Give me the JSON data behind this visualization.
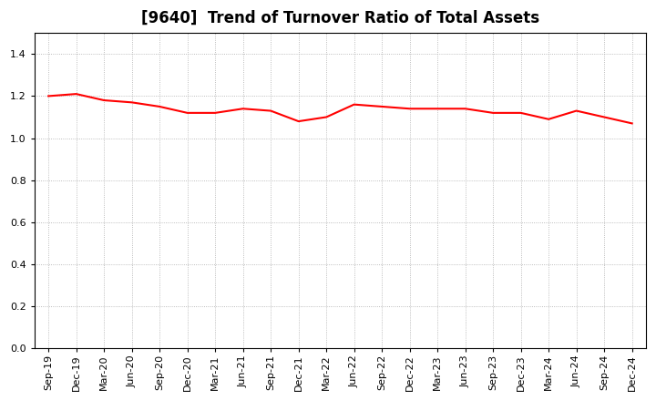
{
  "title": "[9640]  Trend of Turnover Ratio of Total Assets",
  "x_labels": [
    "Sep-19",
    "Dec-19",
    "Mar-20",
    "Jun-20",
    "Sep-20",
    "Dec-20",
    "Mar-21",
    "Jun-21",
    "Sep-21",
    "Dec-21",
    "Mar-22",
    "Jun-22",
    "Sep-22",
    "Dec-22",
    "Mar-23",
    "Jun-23",
    "Sep-23",
    "Dec-23",
    "Mar-24",
    "Jun-24",
    "Sep-24",
    "Dec-24"
  ],
  "values": [
    1.2,
    1.21,
    1.18,
    1.17,
    1.15,
    1.12,
    1.12,
    1.14,
    1.13,
    1.08,
    1.1,
    1.16,
    1.15,
    1.14,
    1.14,
    1.14,
    1.12,
    1.12,
    1.09,
    1.13,
    1.1,
    1.07
  ],
  "line_color": "#ff0000",
  "line_width": 1.5,
  "ylim": [
    0.0,
    1.5
  ],
  "yticks": [
    0.0,
    0.2,
    0.4,
    0.6,
    0.8,
    1.0,
    1.2,
    1.4
  ],
  "grid_color": "#aaaaaa",
  "bg_color": "#ffffff",
  "plot_bg_color": "#ffffff",
  "title_fontsize": 12,
  "tick_fontsize": 8
}
